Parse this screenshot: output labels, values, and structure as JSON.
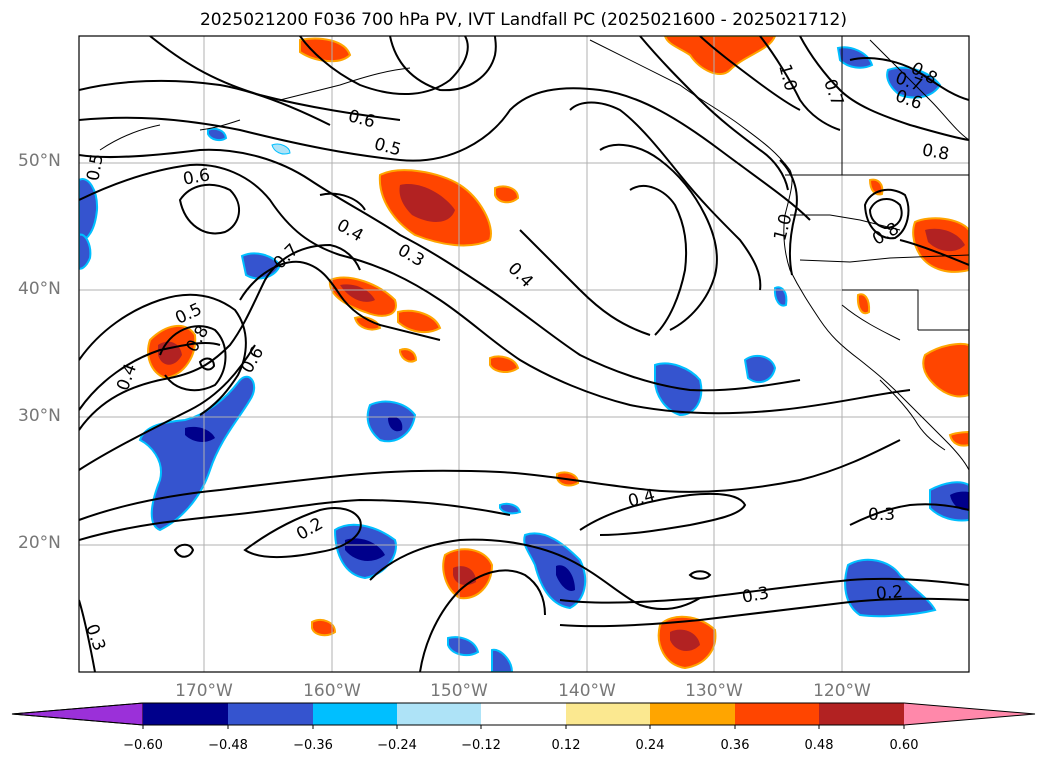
{
  "title": "2025021200 F036 700 hPa PV, IVT Landfall PC (2025021600 - 2025021712)",
  "map": {
    "lat_labels": [
      "50°N",
      "40°N",
      "30°N",
      "20°N"
    ],
    "lon_labels": [
      "170°W",
      "160°W",
      "150°W",
      "140°W",
      "130°W",
      "120°W"
    ],
    "contour_labels": [
      "0.6",
      "0.5",
      "0.6",
      "0.4",
      "0.3",
      "0.4",
      "0.7",
      "0.5",
      "0.8",
      "0.4",
      "0.6",
      "0.2",
      "0.4",
      "0.3",
      "0.3",
      "0.2",
      "0.3",
      "1.0",
      "0.7",
      "0.6",
      "0.8",
      "1.0",
      "0.8",
      "0.5",
      "0.8",
      "0.7"
    ]
  },
  "colorbar": {
    "ticks": [
      "−0.60",
      "−0.48",
      "−0.36",
      "−0.24",
      "−0.12",
      "0.12",
      "0.24",
      "0.36",
      "0.48",
      "0.60"
    ],
    "colors": [
      "#9b30d9",
      "#00008b",
      "#3554cf",
      "#00bfff",
      "#aee3f7",
      "#ffffff",
      "#fbe890",
      "#ffa500",
      "#ff4500",
      "#b22222",
      "#ff88aa"
    ]
  }
}
